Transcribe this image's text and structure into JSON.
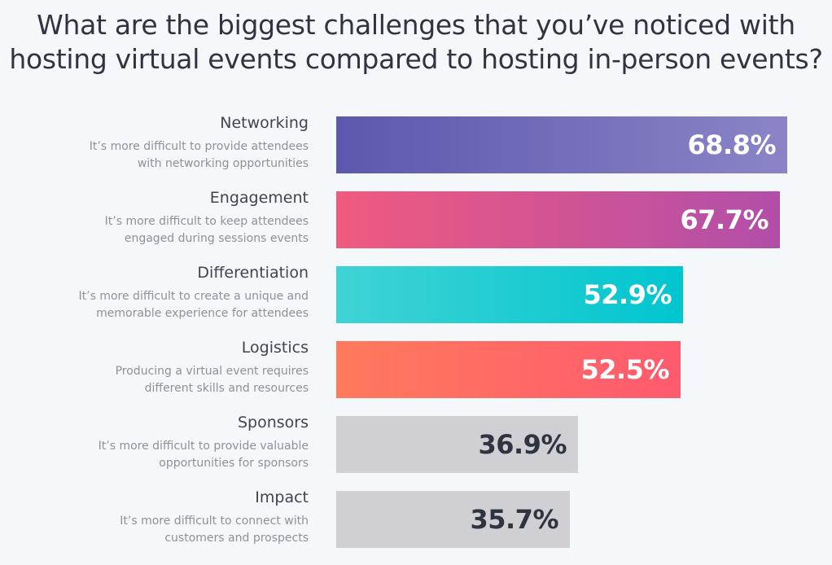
{
  "title": {
    "line1": "What are the biggest challenges that you’ve noticed with",
    "line2": "hosting virtual events compared to hosting in-person events?"
  },
  "chart_data": {
    "type": "bar",
    "orientation": "horizontal",
    "title": "What are the biggest challenges that you’ve noticed with hosting virtual events compared to hosting in-person events?",
    "unit": "%",
    "categories": [
      "Networking",
      "Engagement",
      "Differentiation",
      "Logistics",
      "Sponsors",
      "Impact"
    ],
    "descriptions": [
      [
        "It’s more difficult to provide attendees",
        "with networking opportunities"
      ],
      [
        "It’s more difficult to keep attendees",
        "engaged during sessions events"
      ],
      [
        "It’s more difficult to create a unique and",
        "memorable experience for attendees"
      ],
      [
        "Producing a virtual event requires",
        "different skills and resources"
      ],
      [
        "It’s more difficult to provide valuable",
        "opportunities for sponsors"
      ],
      [
        "It’s more difficult to connect with",
        "customers and prospects"
      ]
    ],
    "values": [
      68.8,
      67.7,
      52.9,
      52.5,
      36.9,
      35.7
    ],
    "value_labels": [
      "68.8%",
      "67.7%",
      "52.9%",
      "52.5%",
      "36.9%",
      "35.7%"
    ],
    "bar_colors": [
      [
        "#5c58ad",
        "#8a84c7"
      ],
      [
        "#f05a7e",
        "#b14ea9"
      ],
      [
        "#40d3d4",
        "#00c6cf"
      ],
      [
        "#ff7a5c",
        "#ff5a6e"
      ],
      [
        "#cfcfd4",
        "#cfcfd4"
      ],
      [
        "#cfcfd4",
        "#cfcfd4"
      ]
    ],
    "value_text_colors": [
      "#ffffff",
      "#ffffff",
      "#ffffff",
      "#ffffff",
      "#2f3440",
      "#2f3440"
    ]
  }
}
